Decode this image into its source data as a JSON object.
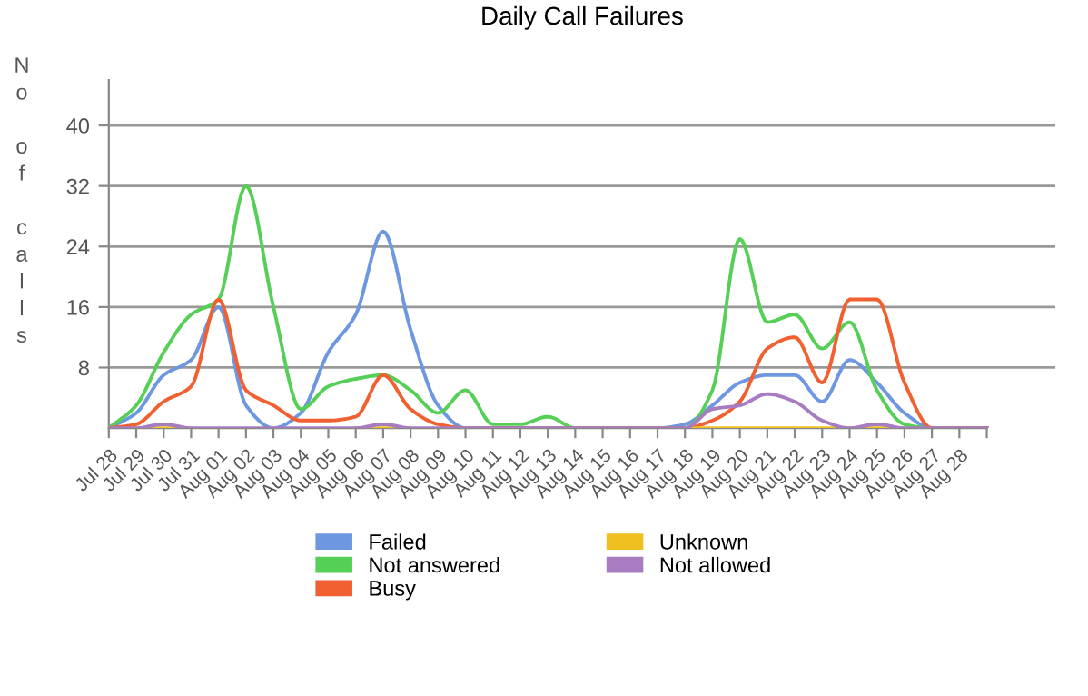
{
  "chart_data": {
    "type": "line",
    "title": "Daily Call Failures",
    "ylabel": "No of calls",
    "categories": [
      "Jul 28",
      "Jul 29",
      "Jul 30",
      "Jul 31",
      "Aug 01",
      "Aug 02",
      "Aug 03",
      "Aug 04",
      "Aug 05",
      "Aug 06",
      "Aug 07",
      "Aug 08",
      "Aug 09",
      "Aug 10",
      "Aug 11",
      "Aug 12",
      "Aug 13",
      "Aug 14",
      "Aug 15",
      "Aug 16",
      "Aug 17",
      "Aug 18",
      "Aug 19",
      "Aug 20",
      "Aug 21",
      "Aug 22",
      "Aug 23",
      "Aug 24",
      "Aug 25",
      "Aug 26",
      "Aug 27",
      "Aug 28",
      null
    ],
    "series": [
      {
        "name": "Failed",
        "color": "#6d97e0",
        "values": [
          0,
          2,
          7,
          9,
          16,
          3,
          0,
          2,
          10,
          15,
          26,
          13,
          3,
          0,
          0,
          0,
          0,
          0,
          0,
          0,
          0,
          0.5,
          3,
          6,
          7,
          7,
          3.5,
          9,
          6,
          2,
          0,
          0,
          0
        ]
      },
      {
        "name": "Not answered",
        "color": "#56cf56",
        "values": [
          0,
          3,
          10,
          15,
          17,
          32,
          16,
          2.5,
          5.5,
          6.5,
          7,
          5,
          2,
          5,
          0.5,
          0.5,
          1.5,
          0,
          0,
          0,
          0,
          0,
          5,
          25,
          14,
          15,
          10.5,
          14,
          5,
          0.5,
          0,
          0,
          0
        ]
      },
      {
        "name": "Busy",
        "color": "#f06030",
        "values": [
          0,
          0.5,
          3.5,
          5.5,
          17,
          5,
          3,
          1,
          1,
          1.5,
          7,
          2.5,
          0.5,
          0,
          0,
          0,
          0,
          0,
          0,
          0,
          0,
          0,
          1,
          3.5,
          10.5,
          12,
          6,
          17,
          17,
          6,
          0,
          0,
          0
        ]
      },
      {
        "name": "Unknown",
        "color": "#f0c020",
        "values": [
          null,
          0,
          0,
          0,
          null,
          null,
          null,
          null,
          null,
          0,
          0,
          0,
          null,
          null,
          null,
          null,
          null,
          null,
          null,
          null,
          null,
          0,
          0,
          0,
          0,
          0,
          0,
          0,
          0,
          0,
          null,
          null,
          null
        ]
      },
      {
        "name": "Not allowed",
        "color": "#a87cc0",
        "values": [
          0,
          0,
          0.5,
          0,
          0,
          0,
          0,
          0,
          0,
          0,
          0.5,
          0,
          0,
          0,
          0,
          0,
          0,
          0,
          0,
          0,
          0,
          0,
          2.5,
          3,
          4.5,
          3.5,
          1,
          0,
          0.5,
          0,
          0,
          0,
          0
        ]
      }
    ],
    "ylim": [
      0,
      46
    ],
    "yticks": [
      8,
      16,
      24,
      32,
      40
    ],
    "grid": "y",
    "legend": "bottom",
    "marker": "none",
    "line_style": "solid"
  }
}
